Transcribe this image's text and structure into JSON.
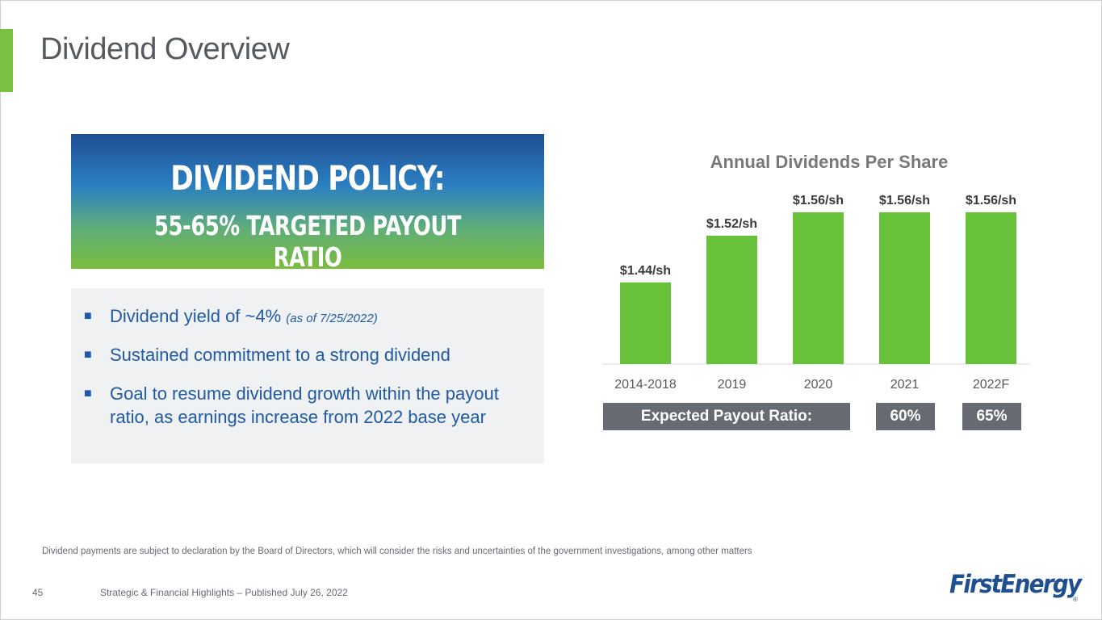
{
  "slide": {
    "title": "Dividend Overview",
    "page_number": "45",
    "footer": "Strategic & Financial Highlights – Published July 26, 2022",
    "disclaimer": "Dividend payments are subject to declaration by the Board of Directors, which will consider the risks and uncertainties of the government investigations, among other matters",
    "logo": "FirstEnergy",
    "logo_reg": "®"
  },
  "policy": {
    "title": "DIVIDEND POLICY:",
    "subtitle": "55-65% TARGETED PAYOUT RATIO"
  },
  "bullets": [
    {
      "marker": "■",
      "text": "Dividend yield of ~4% ",
      "note": "(as of 7/25/2022)"
    },
    {
      "marker": "■",
      "text": "Sustained commitment to a strong dividend",
      "note": ""
    },
    {
      "marker": "■",
      "text": "Goal to resume dividend growth within the payout ratio, as earnings increase from 2022 base year",
      "note": ""
    }
  ],
  "payout": {
    "label": "Expected Payout Ratio:",
    "values": [
      "60%",
      "65%"
    ]
  },
  "colors": {
    "bar": "#67c23a",
    "accent": "#7ac143",
    "text_blue": "#1e5aa8",
    "label_gray": "#666b73"
  },
  "chart_data": {
    "type": "bar",
    "title": "Annual Dividends Per Share",
    "categories": [
      "2014-2018",
      "2019",
      "2020",
      "2021",
      "2022F"
    ],
    "values": [
      1.44,
      1.52,
      1.56,
      1.56,
      1.56
    ],
    "data_labels": [
      "$1.44/sh",
      "$1.52/sh",
      "$1.56/sh",
      "$1.56/sh",
      "$1.56/sh"
    ],
    "xlabel": "",
    "ylabel": "",
    "ylim": [
      1.3,
      1.56
    ],
    "grid": false,
    "legend": "none"
  }
}
